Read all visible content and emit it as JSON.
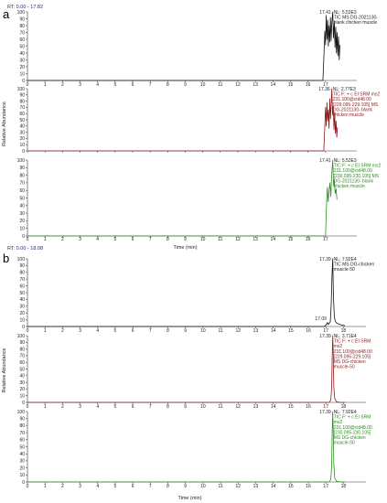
{
  "panels": [
    {
      "letter": "a",
      "rt_range": "RT: 0.00 - 17.82",
      "y_axis_label": "Relative Abundance",
      "x_axis_label": "Time (min)",
      "chart_data": [
        {
          "type": "line",
          "xlim": [
            0,
            18
          ],
          "ylim": [
            0,
            100
          ],
          "x_ticks": [
            "0",
            "1",
            "2",
            "3",
            "4",
            "5",
            "6",
            "7",
            "8",
            "9",
            "10",
            "11",
            "12",
            "13",
            "14",
            "15",
            "16",
            "17"
          ],
          "y_ticks": [
            "0",
            "10",
            "20",
            "30",
            "40",
            "50",
            "60",
            "70",
            "80",
            "90",
            "100"
          ],
          "peak_label": "17.41",
          "nl_label": "NL: 5.53E3",
          "info_lines": [
            "TIC MS DG-2021130-",
            "blank chicken muscle"
          ],
          "color": "#111111",
          "series": [
            {
              "x": [
                0,
                16.85,
                16.92,
                16.96,
                17.0,
                17.04,
                17.08,
                17.12,
                17.16,
                17.2,
                17.24,
                17.28,
                17.32,
                17.36,
                17.41,
                17.45,
                17.5,
                17.54,
                17.58,
                17.62,
                17.66,
                17.7,
                17.74,
                17.78,
                17.82
              ],
              "y": [
                0,
                0,
                45,
                72,
                52,
                95,
                60,
                88,
                50,
                80,
                56,
                92,
                58,
                84,
                100,
                62,
                86,
                48,
                78,
                40,
                70,
                36,
                64,
                30,
                52
              ]
            }
          ]
        },
        {
          "type": "line",
          "xlim": [
            0,
            18
          ],
          "ylim": [
            0,
            100
          ],
          "x_ticks": [],
          "y_ticks": [
            "0",
            "10",
            "20",
            "30",
            "40",
            "50",
            "60",
            "70",
            "80",
            "90",
            "100"
          ],
          "peak_label": "17.36",
          "nl_label": "NL: 2.77E3",
          "info_lines": [
            "TIC F: + c EI SRM ms2",
            "231.100@cid48.00",
            "[229.095-229.105] MS",
            "DG-2021130- blank",
            "chicken muscle"
          ],
          "color": "#8b1a1a",
          "series": [
            {
              "x": [
                0,
                16.9,
                16.96,
                17.0,
                17.04,
                17.08,
                17.12,
                17.16,
                17.2,
                17.24,
                17.28,
                17.32,
                17.36,
                17.4,
                17.44,
                17.48,
                17.52,
                17.56,
                17.6,
                17.64,
                17.68
              ],
              "y": [
                0,
                0,
                42,
                70,
                40,
                78,
                48,
                66,
                36,
                84,
                52,
                74,
                100,
                58,
                72,
                34,
                62,
                28,
                48,
                22,
                38
              ]
            }
          ]
        },
        {
          "type": "line",
          "xlim": [
            0,
            18
          ],
          "ylim": [
            0,
            100
          ],
          "x_ticks": [
            "0",
            "1",
            "2",
            "3",
            "4",
            "5",
            "6",
            "7",
            "8",
            "9",
            "10",
            "11",
            "12",
            "13",
            "14",
            "15",
            "16",
            "17"
          ],
          "y_ticks": [
            "0",
            "10",
            "20",
            "30",
            "40",
            "50",
            "60",
            "70",
            "80",
            "90",
            "100"
          ],
          "peak_label": "17.41",
          "nl_label": "NL: 5.53E3",
          "info_lines": [
            "TIC F: + c EI SRM ms2",
            "231.100@cid48.00",
            "[230.095-230.105] MS",
            "DG-2021130- blank",
            "chicken muscle"
          ],
          "color": "#2e8b22",
          "series": [
            {
              "x": [
                0,
                17.0,
                17.05,
                17.1,
                17.15,
                17.2,
                17.25,
                17.3,
                17.35,
                17.41,
                17.46,
                17.5,
                17.55,
                17.6,
                17.65
              ],
              "y": [
                0,
                0,
                38,
                64,
                45,
                60,
                70,
                52,
                80,
                100,
                66,
                74,
                56,
                62,
                48
              ]
            }
          ]
        }
      ]
    },
    {
      "letter": "b",
      "rt_range": "RT: 0.00 - 18.08",
      "y_axis_label": "Relative Abundance",
      "x_axis_label": "Time (min)",
      "chart_data": [
        {
          "type": "line",
          "xlim": [
            0,
            18.5
          ],
          "ylim": [
            0,
            100
          ],
          "x_ticks": [
            "0",
            "1",
            "2",
            "3",
            "4",
            "5",
            "6",
            "7",
            "8",
            "9",
            "10",
            "11",
            "12",
            "13",
            "14",
            "15",
            "16",
            "17",
            "18"
          ],
          "y_ticks": [
            "0",
            "10",
            "20",
            "30",
            "40",
            "50",
            "60",
            "70",
            "80",
            "90",
            "100"
          ],
          "peak_label": "17.39",
          "secondary_label": "17.09",
          "nl_label": "NL: 7.92E4",
          "info_lines": [
            "TIC MS DG-chicken",
            "muscle-50"
          ],
          "color": "#111111",
          "series": [
            {
              "x": [
                0,
                16.9,
                17.0,
                17.05,
                17.09,
                17.14,
                17.2,
                17.25,
                17.3,
                17.35,
                17.39,
                17.43,
                17.48,
                17.55,
                17.62,
                17.7,
                17.8,
                17.9,
                18.0,
                18.08
              ],
              "y": [
                0,
                0,
                2,
                4,
                6,
                3,
                5,
                7,
                30,
                76,
                100,
                44,
                14,
                7,
                5,
                4,
                3,
                2,
                2,
                1
              ]
            }
          ]
        },
        {
          "type": "line",
          "xlim": [
            0,
            18.5
          ],
          "ylim": [
            0,
            100
          ],
          "x_ticks": [
            "0",
            "1",
            "2",
            "3",
            "4",
            "5",
            "6",
            "7",
            "8",
            "9",
            "10",
            "11",
            "12",
            "13",
            "14",
            "15",
            "16",
            "17",
            "18"
          ],
          "y_ticks": [
            "0",
            "10",
            "20",
            "30",
            "40",
            "50",
            "60",
            "70",
            "80",
            "90",
            "100"
          ],
          "peak_label": "17.39",
          "nl_label": "NL: 3.71E4",
          "info_lines": [
            "TIC F: + c EI SRM",
            "ms2",
            "231.100@cid48.00",
            "[229.095-229.105]",
            "MS DG-chicken",
            "muscle-50"
          ],
          "color": "#8b1a1a",
          "series": [
            {
              "x": [
                0,
                17.2,
                17.28,
                17.33,
                17.36,
                17.39,
                17.42,
                17.45,
                17.5,
                17.6,
                17.8,
                18.08
              ],
              "y": [
                0,
                0,
                4,
                22,
                68,
                100,
                72,
                24,
                6,
                1,
                0,
                0
              ]
            }
          ]
        },
        {
          "type": "line",
          "xlim": [
            0,
            18.5
          ],
          "ylim": [
            0,
            100
          ],
          "x_ticks": [
            "0",
            "1",
            "2",
            "3",
            "4",
            "5",
            "6",
            "7",
            "8",
            "9",
            "10",
            "11",
            "12",
            "13",
            "14",
            "15",
            "16",
            "17",
            "18"
          ],
          "y_ticks": [
            "0",
            "10",
            "20",
            "30",
            "40",
            "50",
            "60",
            "70",
            "80",
            "90",
            "100"
          ],
          "peak_label": "17.39",
          "nl_label": "NL: 7.92E4",
          "info_lines": [
            "TIC F: + c EI SRM",
            "ms2",
            "231.100@cid48.00",
            "[230.095-230.105]",
            "MS DG-chicken",
            "muscle-50"
          ],
          "color": "#2e8b22",
          "series": [
            {
              "x": [
                0,
                17.2,
                17.28,
                17.33,
                17.36,
                17.39,
                17.42,
                17.45,
                17.5,
                17.6,
                17.8,
                18.08
              ],
              "y": [
                0,
                0,
                4,
                24,
                70,
                100,
                74,
                26,
                6,
                1,
                0,
                0
              ]
            }
          ]
        }
      ]
    }
  ]
}
